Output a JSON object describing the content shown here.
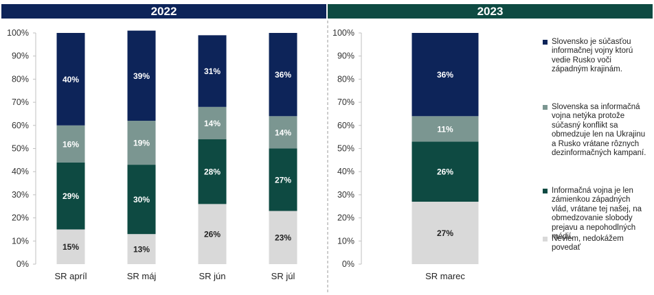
{
  "chart_data": {
    "type": "bar",
    "stacked": true,
    "groups": [
      {
        "title": "2022",
        "categories": [
          "SR apríl",
          "SR máj",
          "SR jún",
          "SR júl"
        ]
      },
      {
        "title": "2023",
        "categories": [
          "SR marec"
        ]
      }
    ],
    "categories": [
      "SR apríl",
      "SR máj",
      "SR jún",
      "SR júl",
      "SR marec"
    ],
    "series": [
      {
        "name": "Neviem, nedokážem\npovedať",
        "color": "#d9d9d9",
        "label_color": "#222222",
        "values": [
          15,
          13,
          26,
          23,
          27
        ]
      },
      {
        "name": "Informačná vojna je len\nzámienkou západných\nvlád, vrátane tej našej, na\nobmedzovanie slobody\nprejavu a nepohodlných\nmédií.",
        "color": "#0e4a42",
        "label_color": "#ffffff",
        "values": [
          29,
          30,
          28,
          27,
          26
        ]
      },
      {
        "name": "Slovenska sa informačná\nvojna netýka protože\nsúčasný konflikt sa\nobmedzuje len na Ukrajinu\na Rusko vrátane rôznych\ndezinformačných kampaní.",
        "color": "#7b9691",
        "label_color": "#ffffff",
        "values": [
          16,
          19,
          14,
          14,
          11
        ]
      },
      {
        "name": "Slovensko je súčasťou\ninformačnej vojny ktorú\nvedie Rusko voči\nzápadným krajinám.",
        "color": "#0d2459",
        "label_color": "#ffffff",
        "values": [
          40,
          39,
          31,
          36,
          36
        ]
      }
    ],
    "y_ticks": [
      "0%",
      "10%",
      "20%",
      "30%",
      "40%",
      "50%",
      "60%",
      "70%",
      "80%",
      "90%",
      "100%"
    ],
    "ylim": [
      0,
      100
    ],
    "legend_position": "right",
    "grid": false
  },
  "banners": {
    "year_2022": {
      "label": "2022",
      "color": "#0d2459"
    },
    "year_2023": {
      "label": "2023",
      "color": "#0e4a42"
    }
  }
}
